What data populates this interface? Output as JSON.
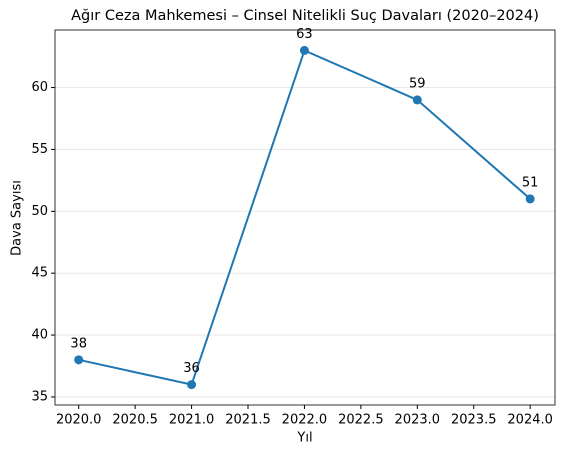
{
  "chart_data": {
    "type": "line",
    "title": "Ağır Ceza Mahkemesi – Cinsel Nitelikli Suç Davaları (2020–2024)",
    "x_label": "Yıl",
    "y_label": "Dava Sayısı",
    "x": [
      2020,
      2021,
      2022,
      2023,
      2024
    ],
    "values": [
      38,
      36,
      63,
      59,
      51
    ],
    "color": "#1f77b4",
    "xlim": [
      2019.79,
      2024.22
    ],
    "xticks": [
      {
        "value": 2020,
        "label": "2020.0"
      },
      {
        "value": 2020.5,
        "label": "2020.5"
      },
      {
        "value": 2021,
        "label": "2021.0"
      },
      {
        "value": 2021.5,
        "label": "2021.5"
      },
      {
        "value": 2022,
        "label": "2022.0"
      },
      {
        "value": 2022.5,
        "label": "2022.5"
      },
      {
        "value": 2023,
        "label": "2023.0"
      },
      {
        "value": 2023.5,
        "label": "2023.5"
      },
      {
        "value": 2024,
        "label": "2024.0"
      }
    ],
    "ylim": [
      34.35,
      64.65
    ],
    "yticks": [
      35,
      40,
      45,
      50,
      55,
      60
    ],
    "grid": true
  }
}
